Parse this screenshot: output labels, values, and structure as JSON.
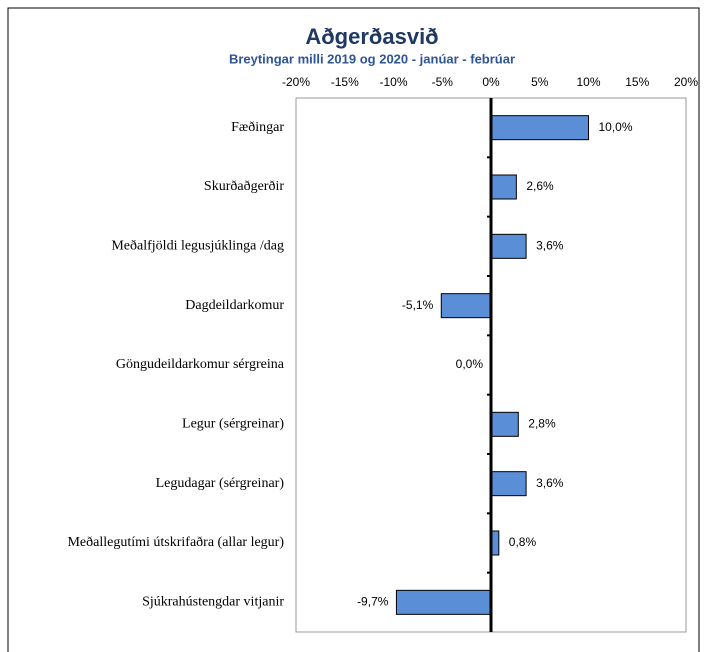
{
  "chart_data": {
    "type": "bar",
    "orientation": "horizontal",
    "title": "Aðgerðasvið",
    "subtitle": "Breytingar milli 2019 og 2020  -  janúar - febrúar",
    "categories": [
      "Fæðingar",
      "Skurðaðgerðir",
      "Meðalfjöldi legusjúklinga /dag",
      "Dagdeildarkomur",
      "Göngudeildarkomur sérgreina",
      "Legur (sérgreinar)",
      "Legudagar (sérgreinar)",
      "Meðallegutími útskrifaðra (allar legur)",
      "Sjúkrahústengdar vitjanir"
    ],
    "values": [
      10.0,
      2.6,
      3.6,
      -5.1,
      0.0,
      2.8,
      3.6,
      0.8,
      -9.7
    ],
    "value_labels": [
      "10,0%",
      "2,6%",
      "3,6%",
      "-5,1%",
      "0,0%",
      "2,8%",
      "3,6%",
      "0,8%",
      "-9,7%"
    ],
    "color": "#5a8fd8",
    "xlim": [
      -20,
      20
    ],
    "xticks": [
      {
        "value": -20,
        "label": "-20%"
      },
      {
        "value": -15,
        "label": "-15%"
      },
      {
        "value": -10,
        "label": "-10%"
      },
      {
        "value": -5,
        "label": "-5%"
      },
      {
        "value": 0,
        "label": "0%"
      },
      {
        "value": 5,
        "label": "5%"
      },
      {
        "value": 10,
        "label": "10%"
      },
      {
        "value": 15,
        "label": "15%"
      },
      {
        "value": 20,
        "label": "20%"
      }
    ],
    "grid": false
  }
}
